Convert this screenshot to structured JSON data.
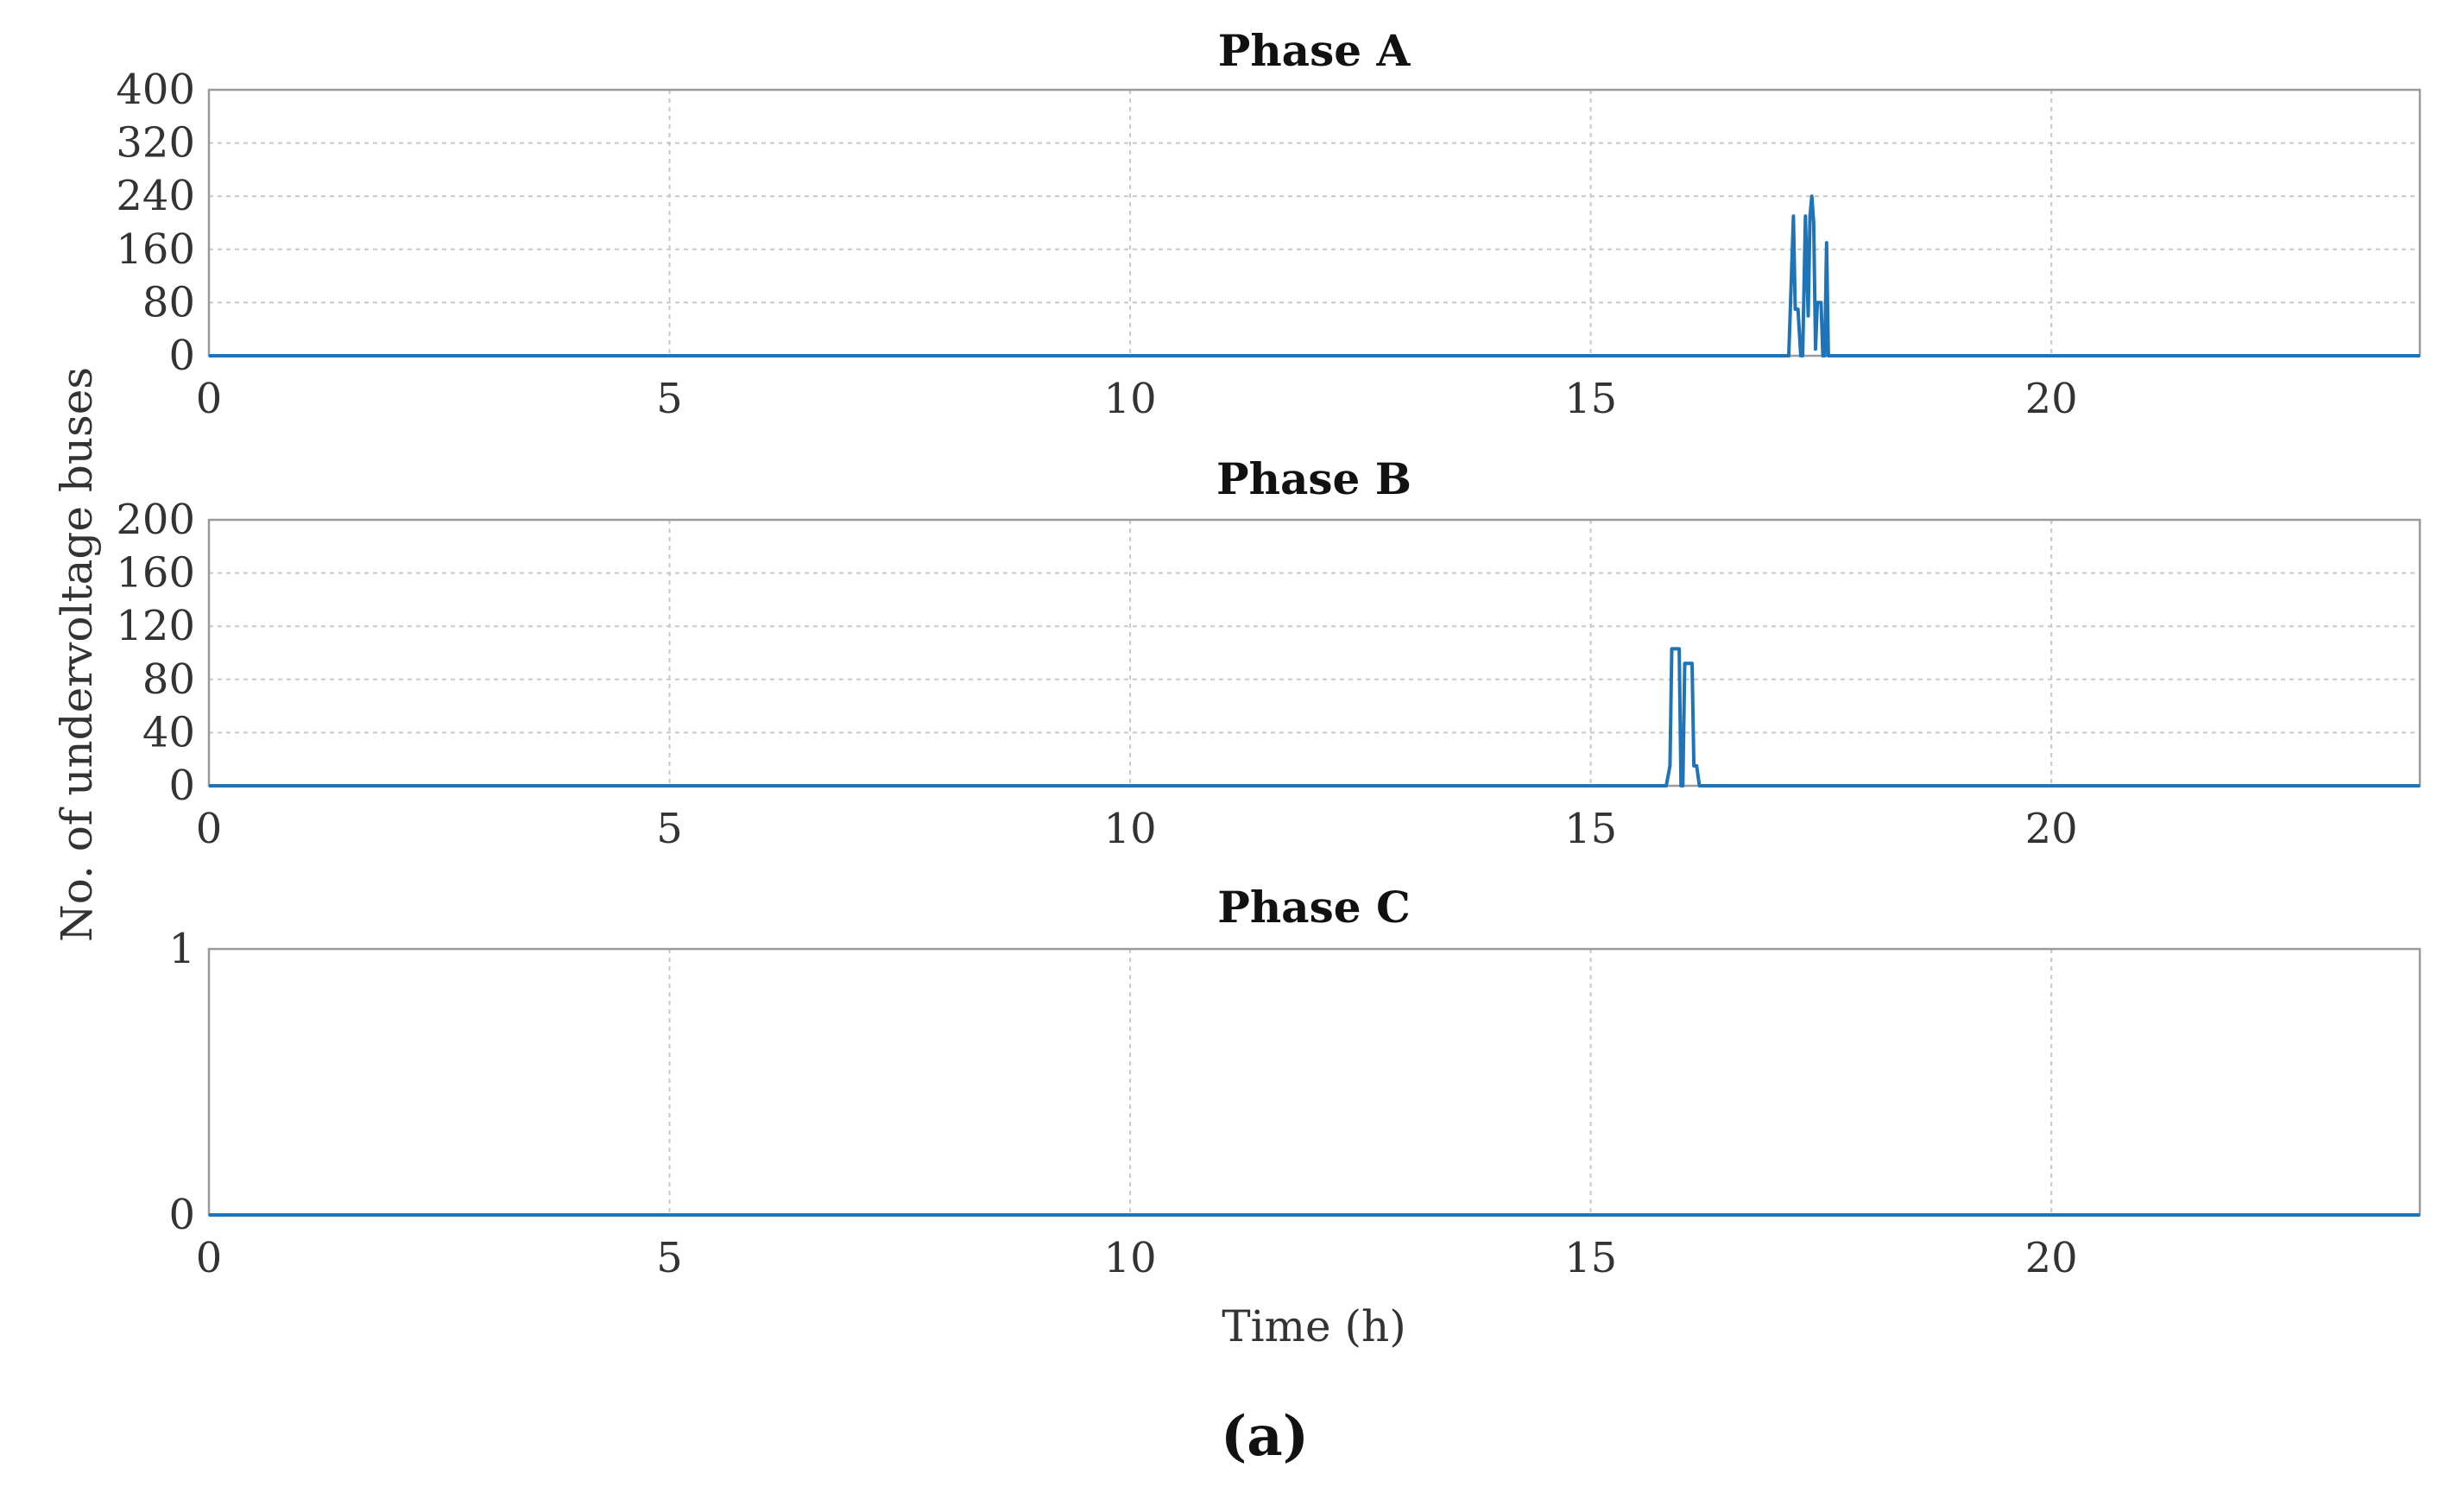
{
  "figure": {
    "ylabel": "No. of undervoltage buses",
    "xlabel": "Time (h)",
    "caption": "(a)",
    "line_color": "#1f74b8",
    "grid": "dashed"
  },
  "chart_data": [
    {
      "type": "line",
      "title": "Phase A",
      "xlim": [
        0,
        24
      ],
      "ylim": [
        0,
        400
      ],
      "xticks": [
        0,
        5,
        10,
        15,
        20
      ],
      "yticks": [
        0,
        80,
        160,
        240,
        320,
        400
      ],
      "series": [
        {
          "x": [
            0,
            17.15,
            17.2,
            17.22,
            17.25,
            17.28,
            17.3,
            17.33,
            17.36,
            17.38,
            17.4,
            17.42,
            17.44,
            17.46,
            17.48,
            17.5,
            17.52,
            17.54,
            17.56,
            17.58,
            17.6,
            17.62,
            17.64,
            17.66,
            24
          ],
          "y": [
            0,
            0,
            210,
            70,
            70,
            0,
            0,
            210,
            60,
            210,
            240,
            200,
            10,
            80,
            80,
            80,
            0,
            0,
            170,
            0,
            0,
            0,
            0,
            0,
            0
          ]
        }
      ]
    },
    {
      "type": "line",
      "title": "Phase B",
      "xlim": [
        0,
        24
      ],
      "ylim": [
        0,
        200
      ],
      "xticks": [
        0,
        5,
        10,
        15,
        20
      ],
      "yticks": [
        0,
        40,
        80,
        120,
        160,
        200
      ],
      "series": [
        {
          "x": [
            0,
            15.82,
            15.86,
            15.88,
            15.96,
            15.98,
            16.0,
            16.02,
            16.04,
            16.1,
            16.12,
            16.15,
            16.18,
            24
          ],
          "y": [
            0,
            0,
            15,
            103,
            103,
            0,
            0,
            92,
            92,
            92,
            15,
            15,
            0,
            0
          ]
        }
      ]
    },
    {
      "type": "line",
      "title": "Phase C",
      "xlim": [
        0,
        24
      ],
      "ylim": [
        0,
        1
      ],
      "xticks": [
        0,
        5,
        10,
        15,
        20
      ],
      "yticks": [
        0,
        1
      ],
      "series": [
        {
          "x": [
            0,
            24
          ],
          "y": [
            0,
            0
          ]
        }
      ]
    }
  ]
}
